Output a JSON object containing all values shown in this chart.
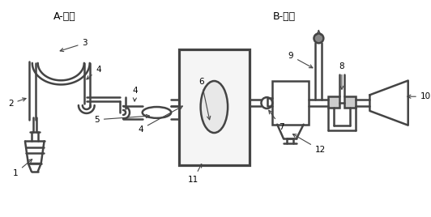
{
  "title_left": "A-前端",
  "title_right": "B-后端",
  "bg_color": "#ffffff",
  "line_color": "#444444",
  "lw": 1.8
}
